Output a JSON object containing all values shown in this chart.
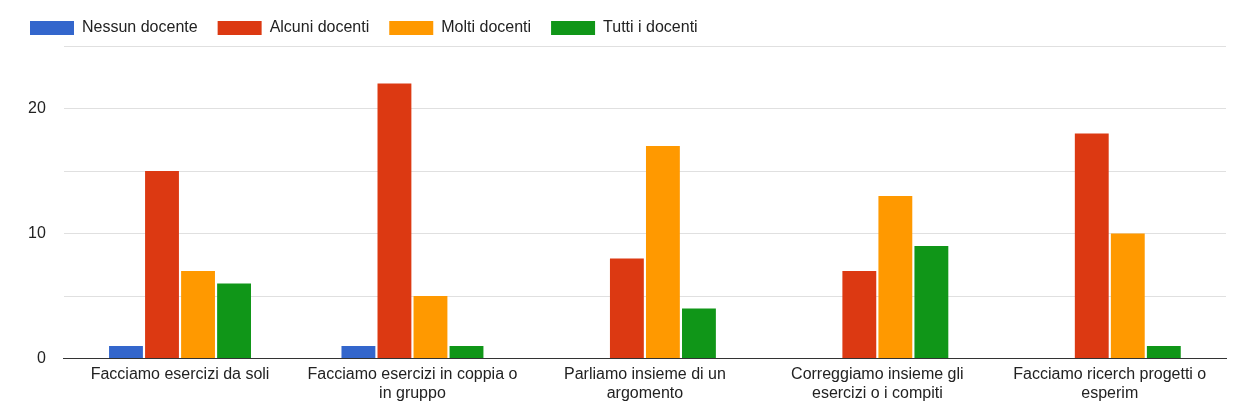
{
  "chart_data": {
    "type": "bar",
    "categories": [
      "Facciamo esercizi da soli",
      "Facciamo esercizi in coppia o in gruppo",
      "Parliamo insieme di un argomento",
      "Correggiamo insieme gli esercizi o i compiti",
      "Facciamo ricerch progetti o esperim"
    ],
    "series": [
      {
        "name": "Nessun docente",
        "color": "#3366cc",
        "values": [
          1,
          1,
          0,
          0,
          0
        ]
      },
      {
        "name": "Alcuni docenti",
        "color": "#dc3912",
        "values": [
          15,
          22,
          8,
          7,
          18
        ]
      },
      {
        "name": "Molti docenti",
        "color": "#ff9900",
        "values": [
          7,
          5,
          17,
          13,
          10
        ]
      },
      {
        "name": "Tutti i docenti",
        "color": "#109618",
        "values": [
          6,
          1,
          4,
          9,
          1
        ]
      }
    ],
    "ylim": [
      0,
      25
    ],
    "yticks": [
      0,
      {
        "value": 5,
        "label": null
      },
      10,
      {
        "value": 15,
        "label": null
      },
      20,
      {
        "value": 25,
        "label": null
      }
    ],
    "grid": "y",
    "legend": "top left"
  }
}
